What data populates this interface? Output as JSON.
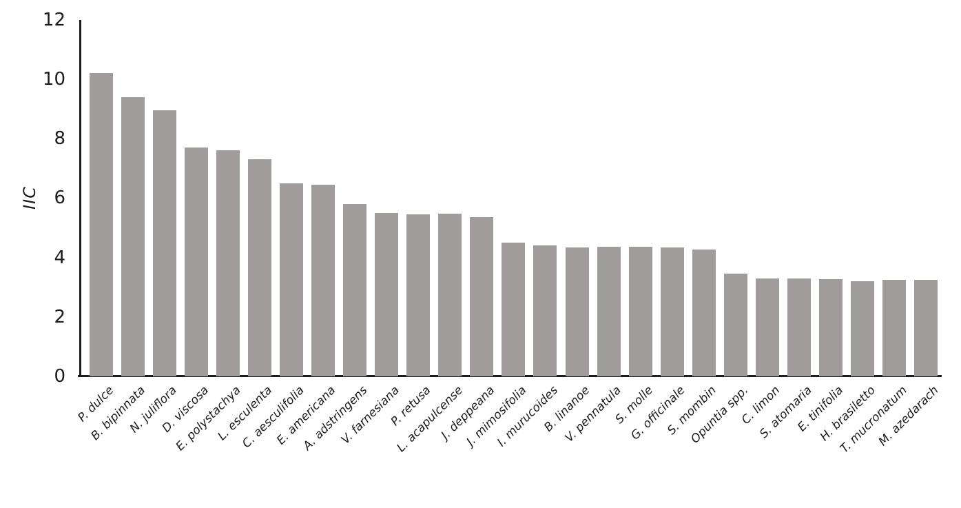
{
  "chart_data": {
    "type": "bar",
    "title": "",
    "xlabel": "",
    "ylabel": "IIC",
    "ylim": [
      0,
      12
    ],
    "yticks": [
      0,
      2,
      4,
      6,
      8,
      10,
      12
    ],
    "grid": false,
    "legend": "none",
    "bar_color": "#a09c9c",
    "axis_color": "#1c1c1c",
    "text_color": "#1c1c1c",
    "x_tick_label_rotation_deg": 45,
    "categories": [
      "P. dulce",
      "B. bipinnata",
      "N. juliflora",
      "D. viscosa",
      "E. polystachya",
      "L. esculenta",
      "C. aesculifolia",
      "E. americana",
      "A. adstringens",
      "V. farnesiana",
      "P. retusa",
      "L. acapulcense",
      "J. deppeana",
      "J. mimosifolia",
      "I. murucoides",
      "B. linanoe",
      "V. pennatula",
      "S. molle",
      "G. officinale",
      "S. mombin",
      "Opuntia spp.",
      "C. limon",
      "S. atomaria",
      "E. tinifolia",
      "H. brasiletto",
      "T. mucronatum",
      "M. azedarach"
    ],
    "values": [
      10.2,
      9.4,
      8.95,
      7.7,
      7.6,
      7.3,
      6.5,
      6.45,
      5.8,
      5.5,
      5.45,
      5.48,
      5.35,
      4.5,
      4.4,
      4.35,
      4.37,
      4.37,
      4.33,
      4.28,
      3.45,
      3.3,
      3.3,
      3.26,
      3.2,
      3.24,
      3.24
    ]
  }
}
